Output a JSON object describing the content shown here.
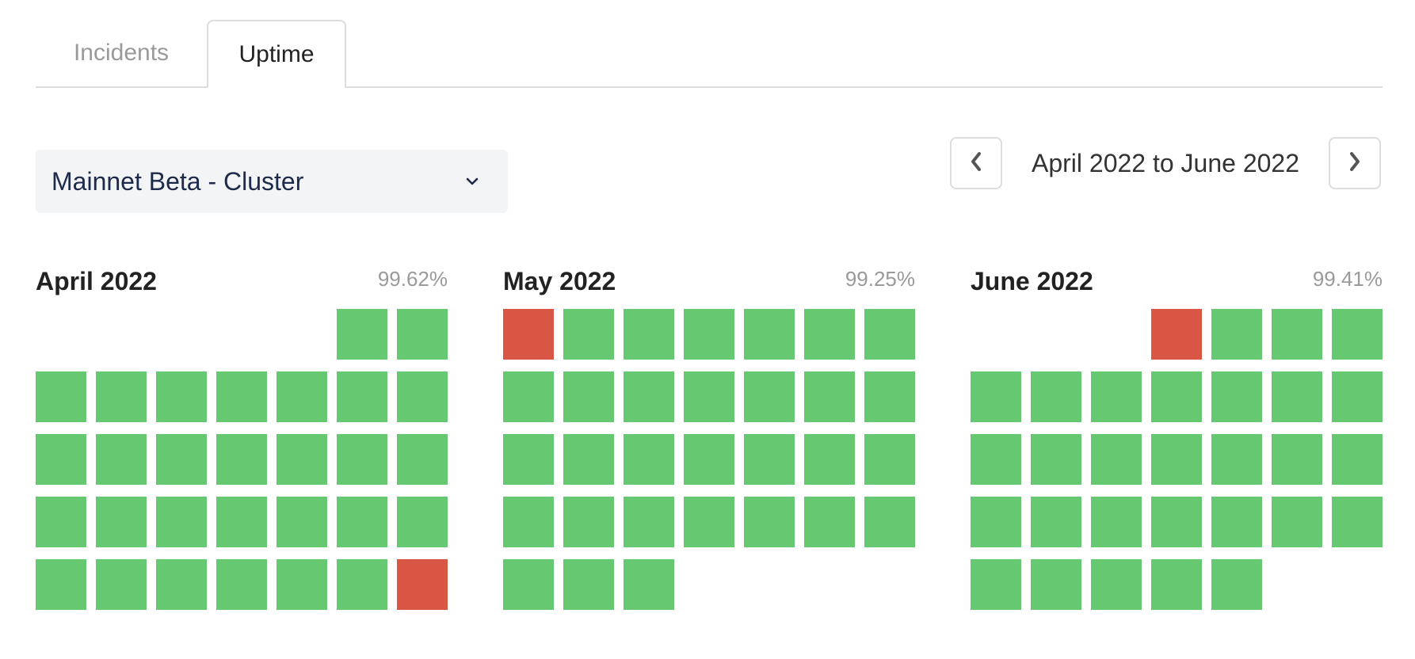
{
  "tabs": [
    {
      "label": "Incidents",
      "active": false
    },
    {
      "label": "Uptime",
      "active": true
    }
  ],
  "component_select": {
    "value": "Mainnet Beta - Cluster",
    "icon": "chevron-down-icon"
  },
  "date_range": {
    "label": "April 2022 to June 2022",
    "prev_icon": "chevron-left-icon",
    "next_icon": "chevron-right-icon"
  },
  "colors": {
    "operational": "#66c972",
    "outage": "#d95644"
  },
  "months": [
    {
      "name": "April 2022",
      "uptime": "99.62%",
      "leading_blanks": 5,
      "days": [
        "up",
        "up",
        "up",
        "up",
        "up",
        "up",
        "up",
        "up",
        "up",
        "up",
        "up",
        "up",
        "up",
        "up",
        "up",
        "up",
        "up",
        "up",
        "up",
        "up",
        "up",
        "up",
        "up",
        "up",
        "up",
        "up",
        "up",
        "up",
        "up",
        "down"
      ]
    },
    {
      "name": "May 2022",
      "uptime": "99.25%",
      "leading_blanks": 0,
      "days": [
        "down",
        "up",
        "up",
        "up",
        "up",
        "up",
        "up",
        "up",
        "up",
        "up",
        "up",
        "up",
        "up",
        "up",
        "up",
        "up",
        "up",
        "up",
        "up",
        "up",
        "up",
        "up",
        "up",
        "up",
        "up",
        "up",
        "up",
        "up",
        "up",
        "up",
        "up"
      ]
    },
    {
      "name": "June 2022",
      "uptime": "99.41%",
      "leading_blanks": 3,
      "days": [
        "down",
        "up",
        "up",
        "up",
        "up",
        "up",
        "up",
        "up",
        "up",
        "up",
        "up",
        "up",
        "up",
        "up",
        "up",
        "up",
        "up",
        "up",
        "up",
        "up",
        "up",
        "up",
        "up",
        "up",
        "up",
        "up",
        "up",
        "up",
        "up",
        "up"
      ]
    }
  ]
}
